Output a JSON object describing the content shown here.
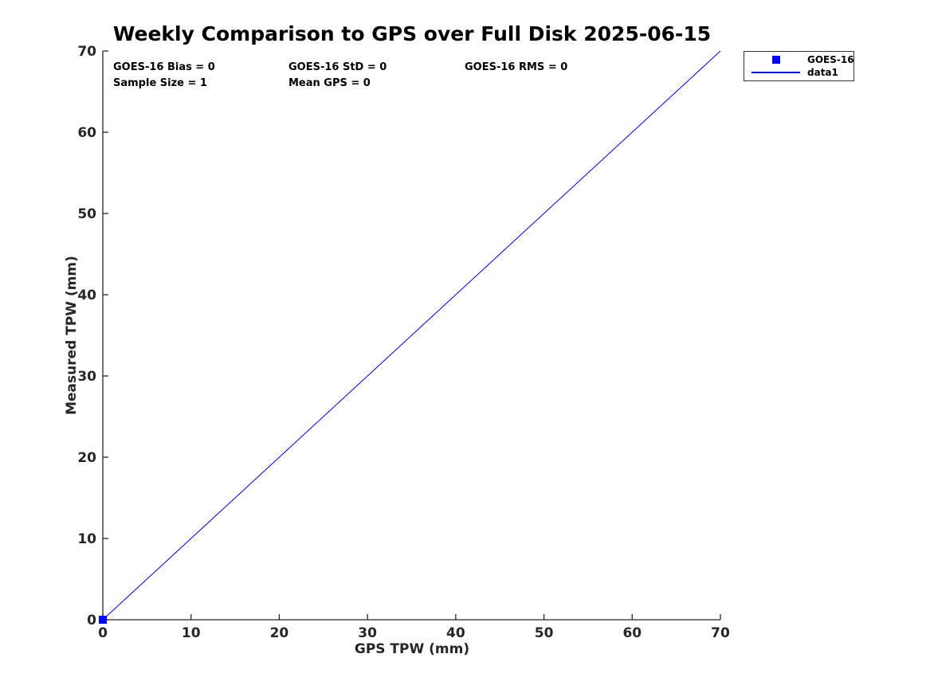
{
  "figure": {
    "title": "Weekly Comparison to GPS over Full Disk 2025-06-15",
    "background_color": "#FFFFFF"
  },
  "annotations": {
    "bias": "GOES-16 Bias = 0",
    "std": "GOES-16 StD = 0",
    "rms": "GOES-16 RMS = 0",
    "sample_size": "Sample Size = 1",
    "mean_gps": "Mean GPS = 0"
  },
  "axes": {
    "xlabel": "GPS TPW (mm)",
    "ylabel": "Measured TPW (mm)"
  },
  "legend": {
    "position": "outside-northeast",
    "entries": [
      {
        "label": "GOES-16",
        "icon": "square-marker-icon",
        "color": "#0000FF"
      },
      {
        "label": "data1",
        "icon": "line-sample-icon",
        "color": "#0000CC"
      }
    ]
  },
  "colors": {
    "marker_blue": "#0000FF",
    "line_blue": "#0000CC",
    "axis_color": "#262626",
    "text_color": "#000000",
    "legend_border": "#333333"
  },
  "chart_data": {
    "type": "scatter",
    "title": "Weekly Comparison to GPS over Full Disk 2025-06-15",
    "xlabel": "GPS TPW (mm)",
    "ylabel": "Measured TPW (mm)",
    "xlim": [
      0,
      70
    ],
    "ylim": [
      0,
      70
    ],
    "xticks": [
      0,
      10,
      20,
      30,
      40,
      50,
      60,
      70
    ],
    "yticks": [
      0,
      10,
      20,
      30,
      40,
      50,
      60,
      70
    ],
    "grid": false,
    "box": false,
    "tick_direction": "in",
    "legend_position": "outside-northeast",
    "series": [
      {
        "name": "GOES-16",
        "type": "scatter",
        "marker": "square",
        "marker_size": 10,
        "color": "#0000FF",
        "points": [
          [
            0,
            0
          ]
        ]
      },
      {
        "name": "data1",
        "type": "line",
        "color": "#0000CC",
        "line_width": 1,
        "points": [
          [
            0,
            0
          ],
          [
            70,
            70
          ]
        ]
      }
    ],
    "stats_annotations": [
      "GOES-16 Bias = 0",
      "GOES-16 StD = 0",
      "GOES-16 RMS = 0",
      "Sample Size = 1",
      "Mean GPS = 0"
    ]
  }
}
